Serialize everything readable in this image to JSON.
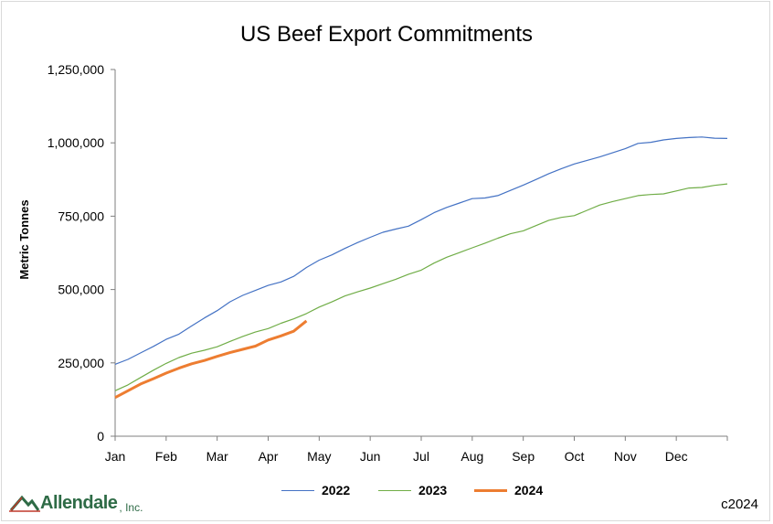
{
  "chart_data": {
    "type": "line",
    "title": "US Beef Export Commitments",
    "ylabel": "Metric Tonnes",
    "xlabel": "",
    "ylim": [
      0,
      1250000
    ],
    "yticks": [
      0,
      250000,
      500000,
      750000,
      1000000,
      1250000
    ],
    "ytick_labels": [
      "0",
      "250,000",
      "500,000",
      "750,000",
      "1,000,000",
      "1,250,000"
    ],
    "xlim": [
      1,
      13
    ],
    "categories": [
      "Jan",
      "Feb",
      "Mar",
      "Apr",
      "May",
      "Jun",
      "Jul",
      "Aug",
      "Sep",
      "Oct",
      "Nov",
      "Dec"
    ],
    "grid": false,
    "legend_position": "bottom",
    "series": [
      {
        "name": "2022",
        "color": "#4472c4",
        "x": [
          1.0,
          1.25,
          1.5,
          1.75,
          2.0,
          2.25,
          2.5,
          2.75,
          3.0,
          3.25,
          3.5,
          3.75,
          4.0,
          4.25,
          4.5,
          4.75,
          5.0,
          5.25,
          5.5,
          5.75,
          6.0,
          6.25,
          6.5,
          6.75,
          7.0,
          7.25,
          7.5,
          7.75,
          8.0,
          8.25,
          8.5,
          8.75,
          9.0,
          9.25,
          9.5,
          9.75,
          10.0,
          10.25,
          10.5,
          10.75,
          11.0,
          11.25,
          11.5,
          11.75,
          12.0,
          12.25,
          12.5,
          12.75,
          13.0
        ],
        "values": [
          245000,
          262000,
          284000,
          306000,
          330000,
          348000,
          376000,
          403000,
          428000,
          458000,
          480000,
          497000,
          514000,
          526000,
          545000,
          575000,
          600000,
          618000,
          640000,
          660000,
          678000,
          695000,
          706000,
          716000,
          738000,
          762000,
          780000,
          795000,
          810000,
          812000,
          820000,
          838000,
          856000,
          875000,
          895000,
          912000,
          928000,
          940000,
          952000,
          966000,
          980000,
          998000,
          1002000,
          1010000,
          1015000,
          1018000,
          1020000,
          1016000,
          1015000
        ]
      },
      {
        "name": "2023",
        "color": "#70ad47",
        "x": [
          1.0,
          1.25,
          1.5,
          1.75,
          2.0,
          2.25,
          2.5,
          2.75,
          3.0,
          3.25,
          3.5,
          3.75,
          4.0,
          4.25,
          4.5,
          4.75,
          5.0,
          5.25,
          5.5,
          5.75,
          6.0,
          6.25,
          6.5,
          6.75,
          7.0,
          7.25,
          7.5,
          7.75,
          8.0,
          8.25,
          8.5,
          8.75,
          9.0,
          9.25,
          9.5,
          9.75,
          10.0,
          10.25,
          10.5,
          10.75,
          11.0,
          11.25,
          11.5,
          11.75,
          12.0,
          12.25,
          12.5,
          12.75,
          13.0
        ],
        "values": [
          155000,
          175000,
          200000,
          225000,
          248000,
          268000,
          283000,
          293000,
          305000,
          323000,
          340000,
          355000,
          367000,
          385000,
          400000,
          418000,
          440000,
          458000,
          478000,
          492000,
          505000,
          520000,
          535000,
          552000,
          566000,
          590000,
          610000,
          626000,
          642000,
          658000,
          675000,
          690000,
          700000,
          718000,
          736000,
          746000,
          752000,
          770000,
          788000,
          800000,
          810000,
          820000,
          824000,
          826000,
          836000,
          846000,
          848000,
          855000,
          860000
        ]
      },
      {
        "name": "2024",
        "color": "#ed7d31",
        "x": [
          1.0,
          1.25,
          1.5,
          1.75,
          2.0,
          2.25,
          2.5,
          2.75,
          3.0,
          3.25,
          3.5,
          3.75,
          4.0,
          4.25,
          4.5,
          4.75
        ],
        "values": [
          132000,
          155000,
          178000,
          196000,
          215000,
          232000,
          247000,
          258000,
          272000,
          285000,
          296000,
          307000,
          328000,
          342000,
          358000,
          393000
        ]
      }
    ]
  },
  "footer": {
    "logo_name": "Allendale",
    "logo_suffix": ", Inc.",
    "copyright": "c2024"
  }
}
